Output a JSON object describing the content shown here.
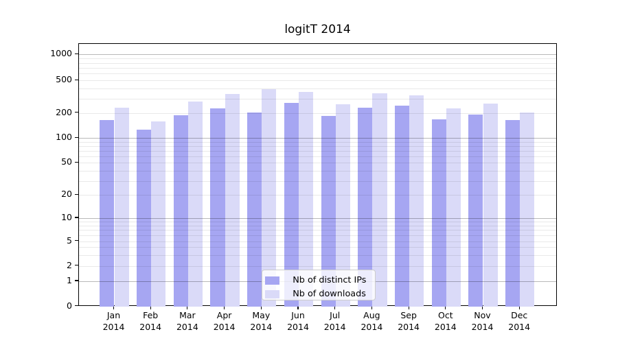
{
  "chart_data": {
    "type": "bar",
    "title": "logitT 2014",
    "categories": [
      "Jan",
      "Feb",
      "Mar",
      "Apr",
      "May",
      "Jun",
      "Jul",
      "Aug",
      "Sep",
      "Oct",
      "Nov",
      "Dec"
    ],
    "x_tick_second_line": "2014",
    "series": [
      {
        "name": "Nb of distinct IPs",
        "color": "#a6a6f2",
        "values": [
          164,
          125,
          189,
          228,
          202,
          266,
          184,
          232,
          245,
          166,
          190,
          164
        ]
      },
      {
        "name": "Nb of downloads",
        "color": "#dadaf8",
        "values": [
          230,
          158,
          277,
          339,
          392,
          360,
          257,
          350,
          327,
          227,
          258,
          202
        ]
      }
    ],
    "xlabel": "",
    "ylabel": "",
    "yscale": "log-like with linear 0-1 segment",
    "y_ticks": [
      0,
      1,
      2,
      5,
      10,
      20,
      50,
      100,
      200,
      500,
      1000
    ],
    "ylim": [
      0,
      1450
    ],
    "grid": true,
    "legend_position": "bottom-center"
  }
}
